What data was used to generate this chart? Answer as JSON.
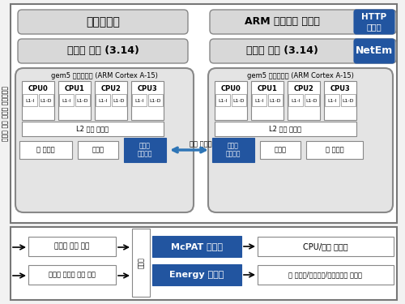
{
  "bg_color": "#f2f2f2",
  "light_gray": "#d8d8d8",
  "blue_dark": "#2255a0",
  "blue_medium": "#2e75b6",
  "vertical_label": "모바일 전체 시스템 시뮬레이션",
  "title_left_top": "안드로이드",
  "title_left_kernel": "리눅스 커널 (3.14)",
  "title_right_top": "ARM 임베디드 리눅스",
  "title_right_http": "HTTP\n앱서버",
  "title_right_kernel": "리눅스 커널 (3.14)",
  "title_right_netem": "NetEm",
  "gem5_label": "gem5 시뮬레이터 (ARM Cortex A-15)",
  "cpu_labels": [
    "CPU0",
    "CPU1",
    "CPU2",
    "CPU3"
  ],
  "l2_label": "L2 캐시 메모리",
  "mem_label": "주 메모리",
  "io_label": "입출력",
  "disk_label": "디스크\n네트워크",
  "virtual_ethernet": "가상 이더넷",
  "sys_config": "시스템 설정 파일",
  "sys_stat": "시스템 구조적 통계 파일",
  "converter_label": "컨버터",
  "mcpat_label": "McPAT 컨버터",
  "energy_label": "Energy 컨버터",
  "cpu_energy": "CPU/캐시 에너지",
  "mem_energy": "주 메모리/네트워크/디스플레이 에너지"
}
